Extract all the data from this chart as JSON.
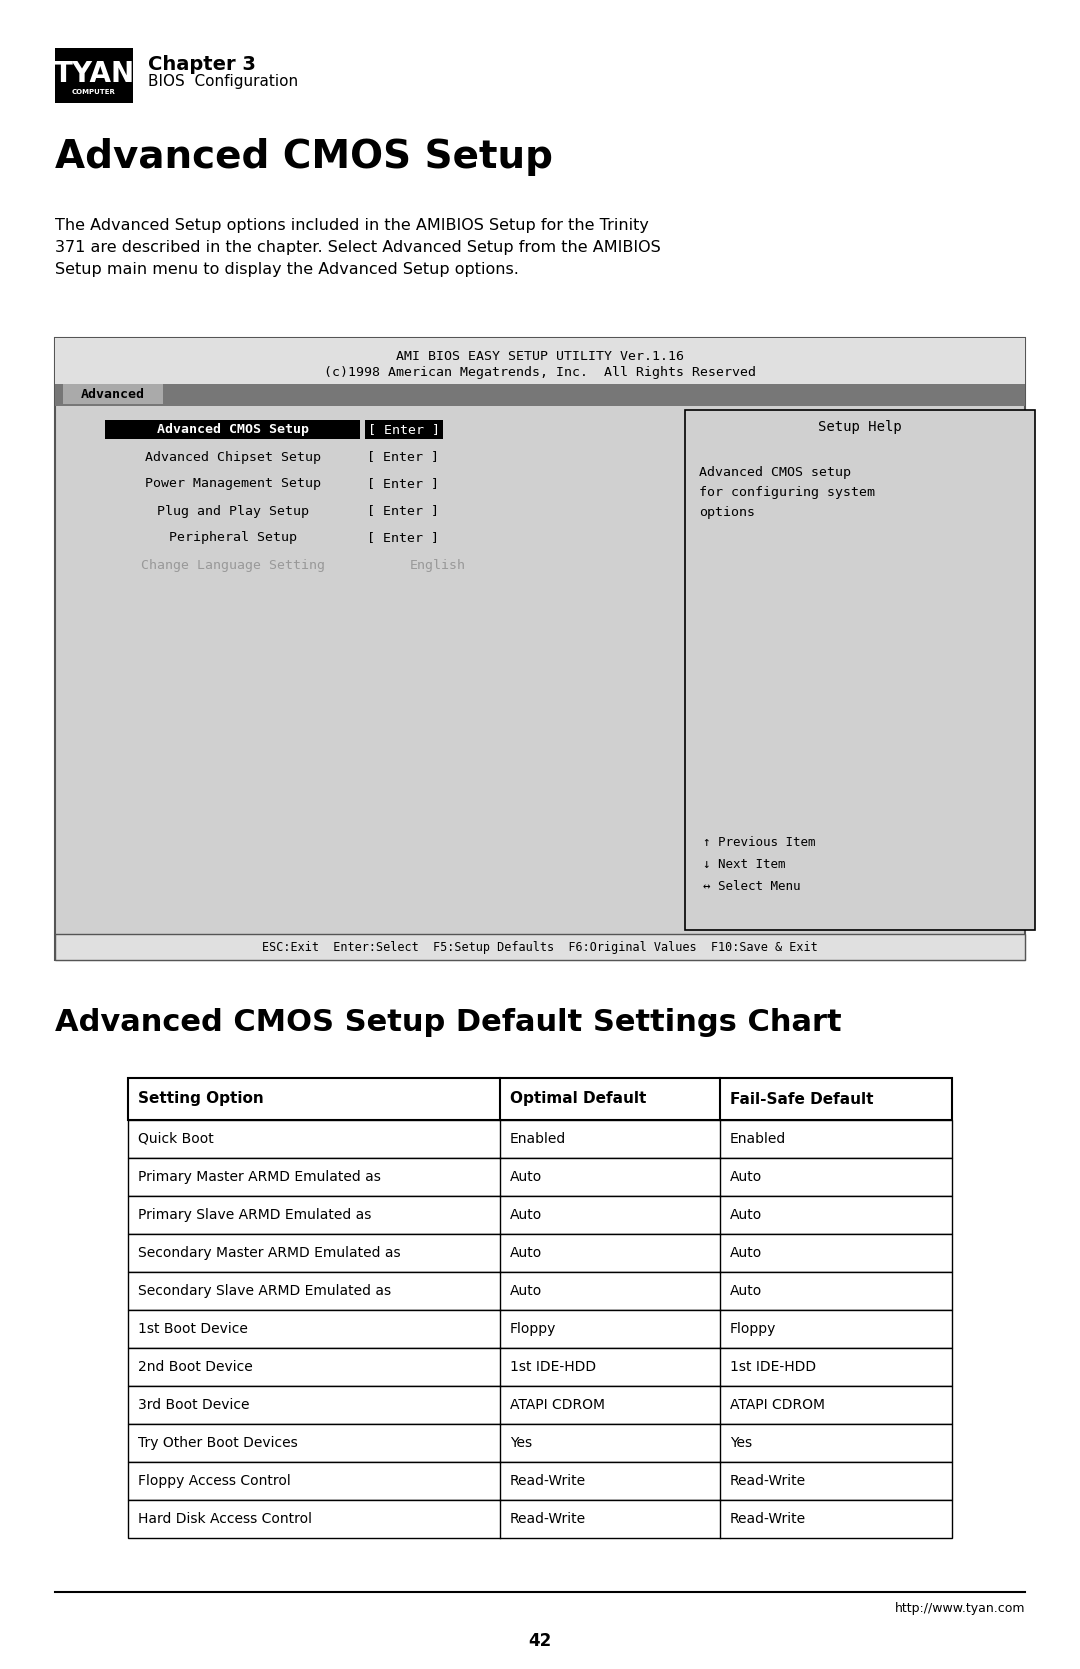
{
  "page_bg": "#ffffff",
  "chapter_label": "Chapter 3",
  "chapter_sub": "BIOS  Configuration",
  "main_title": "Advanced CMOS Setup",
  "body_text": "The Advanced Setup options included in the AMIBIOS Setup for the Trinity\n371 are described in the chapter. Select Advanced Setup from the AMIBIOS\nSetup main menu to display the Advanced Setup options.",
  "bios_screen": {
    "title1": "AMI BIOS EASY SETUP UTILITY Ver.1.16",
    "title2": "(c)1998 American Megatrends, Inc.  All Rights Reserved",
    "tab_label": "Advanced",
    "menu_items": [
      [
        "Advanced CMOS Setup",
        "[ Enter ]",
        true
      ],
      [
        "Advanced Chipset Setup",
        "[ Enter ]",
        false
      ],
      [
        "Power Management Setup",
        "[ Enter ]",
        false
      ],
      [
        "Plug and Play Setup",
        "[ Enter ]",
        false
      ],
      [
        "Peripheral Setup",
        "[ Enter ]",
        false
      ],
      [
        "Change Language Setting",
        "English",
        false
      ]
    ],
    "help_title": "Setup Help",
    "help_text": "Advanced CMOS setup\nfor configuring system\noptions",
    "nav_items": [
      "↑ Previous Item",
      "↓ Next Item",
      "↔ Select Menu"
    ],
    "footer": "ESC:Exit  Enter:Select  F5:Setup Defaults  F6:Original Values  F10:Save & Exit"
  },
  "section_title": "Advanced CMOS Setup Default Settings Chart",
  "table_headers": [
    "Setting Option",
    "Optimal Default",
    "Fail-Safe Default"
  ],
  "table_rows": [
    [
      "Quick Boot",
      "Enabled",
      "Enabled"
    ],
    [
      "Primary Master ARMD Emulated as",
      "Auto",
      "Auto"
    ],
    [
      "Primary Slave ARMD Emulated as",
      "Auto",
      "Auto"
    ],
    [
      "Secondary Master ARMD Emulated as",
      "Auto",
      "Auto"
    ],
    [
      "Secondary Slave ARMD Emulated as",
      "Auto",
      "Auto"
    ],
    [
      "1st Boot Device",
      "Floppy",
      "Floppy"
    ],
    [
      "2nd Boot Device",
      "1st IDE-HDD",
      "1st IDE-HDD"
    ],
    [
      "3rd Boot Device",
      "ATAPI CDROM",
      "ATAPI CDROM"
    ],
    [
      "Try Other Boot Devices",
      "Yes",
      "Yes"
    ],
    [
      "Floppy Access Control",
      "Read-Write",
      "Read-Write"
    ],
    [
      "Hard Disk Access Control",
      "Read-Write",
      "Read-Write"
    ]
  ],
  "footer_url": "http://www.tyan.com",
  "page_number": "42"
}
